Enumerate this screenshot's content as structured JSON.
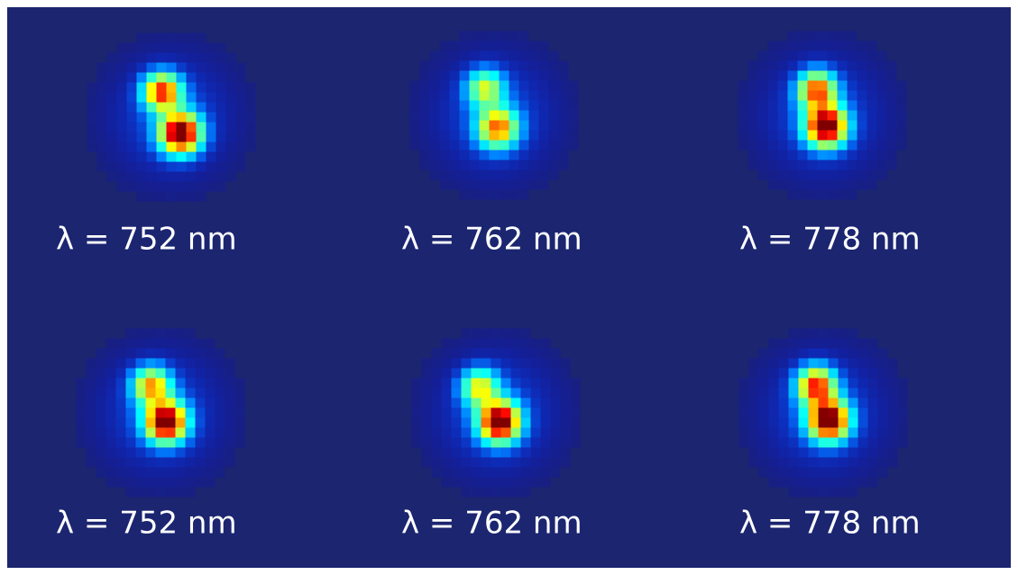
{
  "panels": [
    {
      "label": "λ = 752 nm"
    },
    {
      "label": "λ = 762 nm"
    },
    {
      "label": "λ = 778 nm"
    },
    {
      "label": "λ = 752 nm"
    },
    {
      "label": "λ = 762 nm"
    },
    {
      "label": "λ = 778 nm"
    }
  ]
}
